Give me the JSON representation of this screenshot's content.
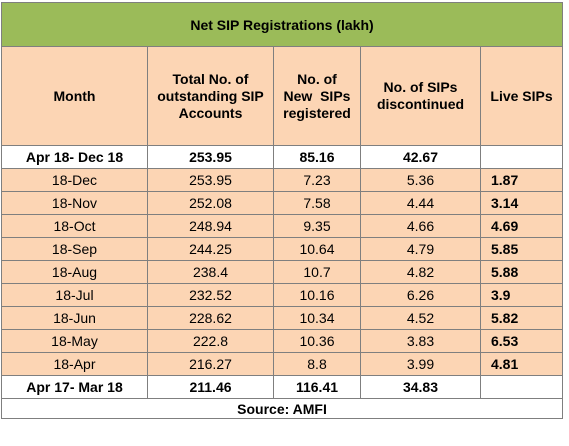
{
  "title": "Net SIP Registrations (lakh)",
  "headers": {
    "month": "Month",
    "total": [
      "Total No. of",
      "outstanding SIP",
      "Accounts"
    ],
    "new": [
      "No. of",
      "New  SIPs",
      "registered"
    ],
    "discontinued": [
      "No. of SIPs",
      "discontinued"
    ],
    "live": "Live SIPs"
  },
  "rows": [
    {
      "month": "Apr 18- Dec 18",
      "total": "253.95",
      "new": "85.16",
      "discontinued": "42.67",
      "live": "",
      "summary": true
    },
    {
      "month": "18-Dec",
      "total": "253.95",
      "new": "7.23",
      "discontinued": "5.36",
      "live": "1.87"
    },
    {
      "month": "18-Nov",
      "total": "252.08",
      "new": "7.58",
      "discontinued": "4.44",
      "live": "3.14"
    },
    {
      "month": "18-Oct",
      "total": "248.94",
      "new": "9.35",
      "discontinued": "4.66",
      "live": "4.69"
    },
    {
      "month": "18-Sep",
      "total": "244.25",
      "new": "10.64",
      "discontinued": "4.79",
      "live": "5.85"
    },
    {
      "month": "18-Aug",
      "total": "238.4",
      "new": "10.7",
      "discontinued": "4.82",
      "live": "5.88"
    },
    {
      "month": "18-Jul",
      "total": "232.52",
      "new": "10.16",
      "discontinued": "6.26",
      "live": "3.9"
    },
    {
      "month": "18-Jun",
      "total": "228.62",
      "new": "10.34",
      "discontinued": "4.52",
      "live": "5.82"
    },
    {
      "month": "18-May",
      "total": "222.8",
      "new": "10.36",
      "discontinued": "3.83",
      "live": "6.53"
    },
    {
      "month": "18-Apr",
      "total": "216.27",
      "new": "8.8",
      "discontinued": "3.99",
      "live": "4.81"
    },
    {
      "month": "Apr 17- Mar 18",
      "total": "211.46",
      "new": "116.41",
      "discontinued": "34.83",
      "live": "",
      "summary": true
    }
  ],
  "source": "Source: AMFI",
  "colors": {
    "title_bg": "#9bbb59",
    "body_bg": "#fcd5b4",
    "summary_bg": "#ffffff",
    "border": "#7f7f7f"
  }
}
